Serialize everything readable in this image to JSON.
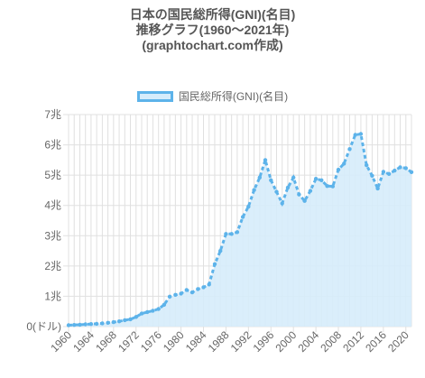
{
  "chart_data": {
    "type": "area",
    "title_lines": [
      "日本の国民総所得(GNI)(名目)",
      "推移グラフ(1960〜2021年)",
      "(graphtochart.com作成)"
    ],
    "legend": "国民総所得(GNI)(名目)",
    "legend_position": "top",
    "grid": true,
    "series": [
      {
        "name": "国民総所得(GNI)(名目)",
        "x": [
          1960,
          1961,
          1962,
          1963,
          1964,
          1965,
          1966,
          1967,
          1968,
          1969,
          1970,
          1971,
          1972,
          1973,
          1974,
          1975,
          1976,
          1977,
          1978,
          1979,
          1980,
          1981,
          1982,
          1983,
          1984,
          1985,
          1986,
          1987,
          1988,
          1989,
          1990,
          1991,
          1992,
          1993,
          1994,
          1995,
          1996,
          1997,
          1998,
          1999,
          2000,
          2001,
          2002,
          2003,
          2004,
          2005,
          2006,
          2007,
          2008,
          2009,
          2010,
          2011,
          2012,
          2013,
          2014,
          2015,
          2016,
          2017,
          2018,
          2019,
          2020,
          2021
        ],
        "values": [
          0.044,
          0.053,
          0.06,
          0.073,
          0.082,
          0.091,
          0.107,
          0.125,
          0.146,
          0.172,
          0.21,
          0.24,
          0.32,
          0.43,
          0.48,
          0.52,
          0.58,
          0.72,
          0.99,
          1.05,
          1.09,
          1.21,
          1.13,
          1.24,
          1.3,
          1.39,
          2.06,
          2.5,
          3.06,
          3.06,
          3.12,
          3.62,
          3.96,
          4.51,
          4.92,
          5.5,
          4.83,
          4.45,
          4.07,
          4.59,
          4.92,
          4.36,
          4.15,
          4.48,
          4.88,
          4.83,
          4.64,
          4.63,
          5.18,
          5.38,
          5.86,
          6.33,
          6.36,
          5.33,
          4.98,
          4.56,
          5.11,
          5.04,
          5.15,
          5.26,
          5.23,
          5.1
        ]
      }
    ],
    "y_ticks": [
      "0(ドル)",
      "1兆",
      "2兆",
      "3兆",
      "4兆",
      "5兆",
      "6兆",
      "7兆"
    ],
    "x_ticks": [
      "1960",
      "1964",
      "1968",
      "1972",
      "1976",
      "1980",
      "1984",
      "1988",
      "1992",
      "1996",
      "2000",
      "2004",
      "2008",
      "2012",
      "2016",
      "2020"
    ],
    "ylim": [
      0,
      7
    ],
    "xlim": [
      1960,
      2021
    ],
    "colors": {
      "line": "#5db3ea",
      "fill": "#d6ecfb",
      "grid": "#e0e0e0",
      "axis": "#666666"
    }
  }
}
